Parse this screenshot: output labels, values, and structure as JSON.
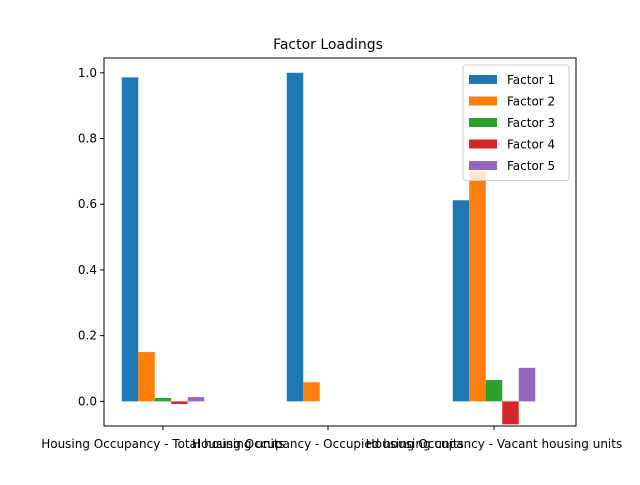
{
  "chart_data": {
    "type": "bar",
    "title": "Factor Loadings",
    "xlabel": "",
    "ylabel": "",
    "categories": [
      "Housing Occupancy - Total housing units",
      "Housing Occupancy - Occupied housing units",
      "Housing Occupancy - Vacant housing units"
    ],
    "ylim": [
      -0.075,
      1.045
    ],
    "yticks": [
      "0.0",
      "0.2",
      "0.4",
      "0.6",
      "0.8",
      "1.0"
    ],
    "ytick_values": [
      0.0,
      0.2,
      0.4,
      0.6,
      0.8,
      1.0
    ],
    "legend_position": "top-right",
    "series": [
      {
        "name": "Factor 1",
        "color": "#1f77b4",
        "values": [
          0.986,
          1.0,
          0.612
        ]
      },
      {
        "name": "Factor 2",
        "color": "#ff7f0e",
        "values": [
          0.15,
          0.058,
          0.7
        ]
      },
      {
        "name": "Factor 3",
        "color": "#2ca02c",
        "values": [
          0.01,
          0.0,
          0.065
        ]
      },
      {
        "name": "Factor 4",
        "color": "#d62728",
        "values": [
          -0.008,
          0.0,
          -0.07
        ]
      },
      {
        "name": "Factor 5",
        "color": "#9467bd",
        "values": [
          0.013,
          0.0,
          0.102
        ]
      }
    ]
  }
}
